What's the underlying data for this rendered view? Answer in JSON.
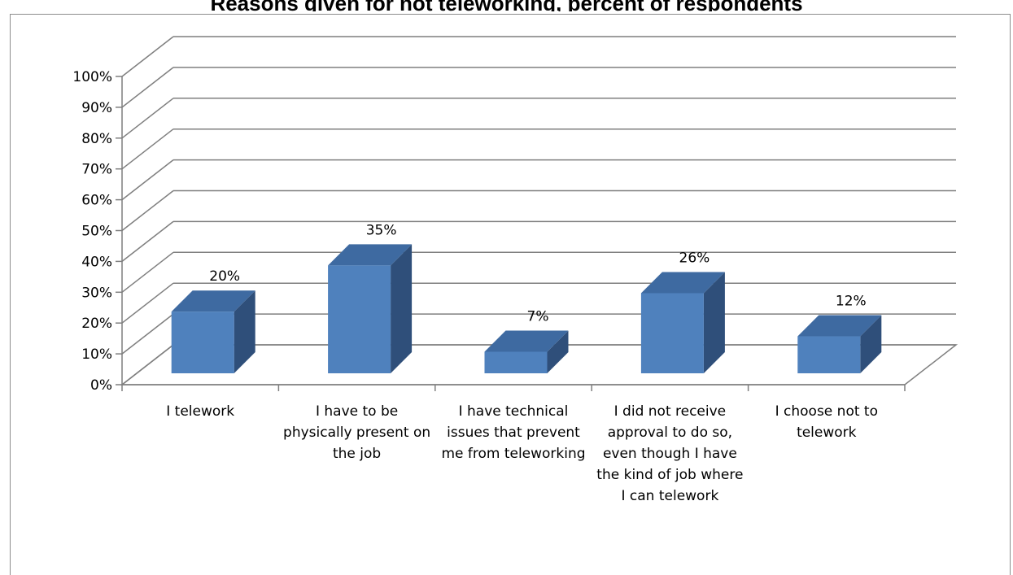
{
  "chart_data": {
    "type": "bar",
    "title": "Reasons given for not teleworking, percent of respondents",
    "categories": [
      "I telework",
      "I have to be physically present on the job",
      "I have technical issues that prevent me from teleworking",
      "I did not receive approval to do so, even though I have the kind of job where I can telework",
      "I choose not to telework"
    ],
    "values": [
      20,
      35,
      7,
      26,
      12
    ],
    "value_labels": [
      "20%",
      "35%",
      "7%",
      "26%",
      "12%"
    ],
    "y_ticks": [
      "0%",
      "10%",
      "20%",
      "30%",
      "40%",
      "50%",
      "60%",
      "70%",
      "80%",
      "90%",
      "100%"
    ],
    "ylim": [
      0,
      100
    ],
    "grid": true,
    "legend": "none",
    "style": "3d-column",
    "colors": {
      "bar_front": "#4f81bd",
      "bar_top": "#3e6aa1",
      "bar_side": "#2f4f7a",
      "grid": "#7f7f7f"
    }
  }
}
